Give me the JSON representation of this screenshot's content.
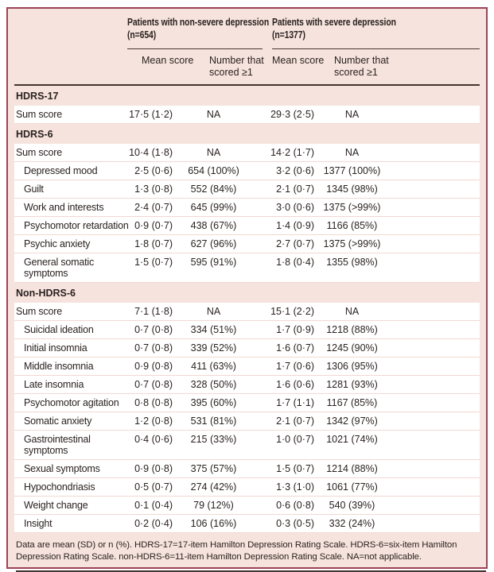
{
  "table": {
    "col_groups": [
      {
        "title": "Patients with non-severe depression\n(n=654)"
      },
      {
        "title": "Patients with severe depression\n(n=1377)"
      }
    ],
    "sub_headers": [
      "Mean score",
      "Number that\nscored ≥1",
      "Mean score",
      "Number that\nscored ≥1"
    ],
    "sections": [
      {
        "title": "HDRS-17",
        "rows": [
          {
            "label": "Sum score",
            "indent": false,
            "cells": [
              "17·5 (1·2)",
              "NA",
              "29·3 (2·5)",
              "NA"
            ]
          }
        ]
      },
      {
        "title": "HDRS-6",
        "rows": [
          {
            "label": "Sum score",
            "indent": false,
            "cells": [
              "10·4 (1·8)",
              "NA",
              "14·2 (1·7)",
              "NA"
            ]
          },
          {
            "label": "Depressed mood",
            "indent": true,
            "cells": [
              "2·5 (0·6)",
              "654 (100%)",
              "3·2 (0·6)",
              "1377 (100%)"
            ]
          },
          {
            "label": "Guilt",
            "indent": true,
            "cells": [
              "1·3 (0·8)",
              "552 (84%)",
              "2·1 (0·7)",
              "1345 (98%)"
            ]
          },
          {
            "label": "Work and interests",
            "indent": true,
            "cells": [
              "2·4 (0·7)",
              "645 (99%)",
              "3·0 (0·6)",
              "1375 (>99%)"
            ]
          },
          {
            "label": "Psychomotor retardation",
            "indent": true,
            "cells": [
              "0·9 (0·7)",
              "438 (67%)",
              "1·4 (0·9)",
              "1166 (85%)"
            ]
          },
          {
            "label": "Psychic anxiety",
            "indent": true,
            "cells": [
              "1·8 (0·7)",
              "627 (96%)",
              "2·7 (0·7)",
              "1375 (>99%)"
            ]
          },
          {
            "label": "General somatic\nsymptoms",
            "indent": true,
            "cells": [
              "1·5 (0·7)",
              "595 (91%)",
              "1·8 (0·4)",
              "1355 (98%)"
            ]
          }
        ]
      },
      {
        "title": "Non-HDRS-6",
        "rows": [
          {
            "label": "Sum score",
            "indent": false,
            "cells": [
              "7·1 (1·8)",
              "NA",
              "15·1 (2·2)",
              "NA"
            ]
          },
          {
            "label": "Suicidal ideation",
            "indent": true,
            "cells": [
              "0·7 (0·8)",
              "334 (51%)",
              "1·7 (0·9)",
              "1218 (88%)"
            ]
          },
          {
            "label": "Initial insomnia",
            "indent": true,
            "cells": [
              "0·7 (0·8)",
              "339 (52%)",
              "1·6 (0·7)",
              "1245 (90%)"
            ]
          },
          {
            "label": "Middle insomnia",
            "indent": true,
            "cells": [
              "0·9 (0·8)",
              "411 (63%)",
              "1·7 (0·6)",
              "1306 (95%)"
            ]
          },
          {
            "label": "Late insomnia",
            "indent": true,
            "cells": [
              "0·7 (0·8)",
              "328 (50%)",
              "1·6 (0·6)",
              "1281 (93%)"
            ]
          },
          {
            "label": "Psychomotor agitation",
            "indent": true,
            "cells": [
              "0·8 (0·8)",
              "395 (60%)",
              "1·7 (1·1)",
              "1167 (85%)"
            ]
          },
          {
            "label": "Somatic anxiety",
            "indent": true,
            "cells": [
              "1·2 (0·8)",
              "531 (81%)",
              "2·1 (0·7)",
              "1342 (97%)"
            ]
          },
          {
            "label": "Gastrointestinal\nsymptoms",
            "indent": true,
            "cells": [
              "0·4 (0·6)",
              "215 (33%)",
              "1·0 (0·7)",
              "1021 (74%)"
            ]
          },
          {
            "label": "Sexual symptoms",
            "indent": true,
            "cells": [
              "0·9 (0·8)",
              "375 (57%)",
              "1·5 (0·7)",
              "1214 (88%)"
            ]
          },
          {
            "label": "Hypochondriasis",
            "indent": true,
            "cells": [
              "0·5 (0·7)",
              "274 (42%)",
              "1·3 (1·0)",
              "1061 (77%)"
            ]
          },
          {
            "label": "Weight change",
            "indent": true,
            "cells": [
              "0·1 (0·4)",
              "79 (12%)",
              "0·6 (0·8)",
              "540 (39%)"
            ]
          },
          {
            "label": "Insight",
            "indent": true,
            "cells": [
              "0·2 (0·4)",
              "106 (16%)",
              "0·3 (0·5)",
              "332 (24%)"
            ]
          }
        ]
      }
    ],
    "footnote": "Data are mean (SD) or n (%). HDRS-17=17-item Hamilton Depression Rating Scale. HDRS-6=six-item Hamilton\nDepression Rating Scale. non-HDRS-6=11-item Hamilton Depression Rating Scale. NA=not applicable.",
    "colors": {
      "panel_background": "#f6e3dd",
      "frame_border": "#9c4257",
      "row_background": "#ffffff",
      "row_divider": "#f2d8d2",
      "rule_dark": "#423430",
      "text": "#2a2220"
    }
  }
}
